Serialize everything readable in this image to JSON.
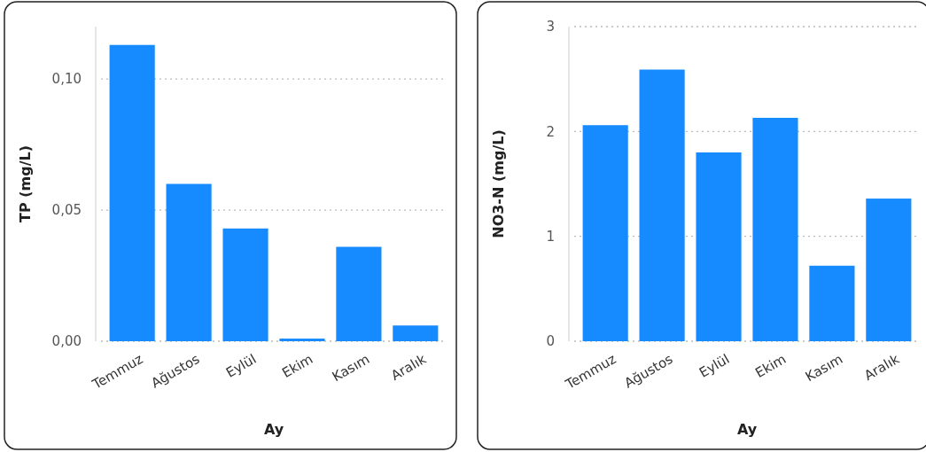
{
  "chart_data": [
    {
      "type": "bar",
      "xlabel": "Ay",
      "ylabel": "TP (mg/L)",
      "categories": [
        "Temmuz",
        "Ağustos",
        "Eylül",
        "Ekim",
        "Kasım",
        "Aralık"
      ],
      "values": [
        0.113,
        0.06,
        0.043,
        0.001,
        0.036,
        0.006
      ],
      "color": "#168bff",
      "ylim": [
        0,
        0.12
      ],
      "yticks": [
        {
          "value": 0,
          "label": "0,00"
        },
        {
          "value": 0.05,
          "label": "0,05"
        },
        {
          "value": 0.1,
          "label": "0,10"
        }
      ],
      "grid": "y"
    },
    {
      "type": "bar",
      "xlabel": "Ay",
      "ylabel": "NO3-N (mg/L)",
      "categories": [
        "Temmuz",
        "Ağustos",
        "Eylül",
        "Ekim",
        "Kasım",
        "Aralık"
      ],
      "values": [
        2.06,
        2.59,
        1.8,
        2.13,
        0.72,
        1.36
      ],
      "color": "#168bff",
      "ylim": [
        0,
        3
      ],
      "yticks": [
        0,
        1,
        2,
        3
      ],
      "grid": "y"
    }
  ]
}
